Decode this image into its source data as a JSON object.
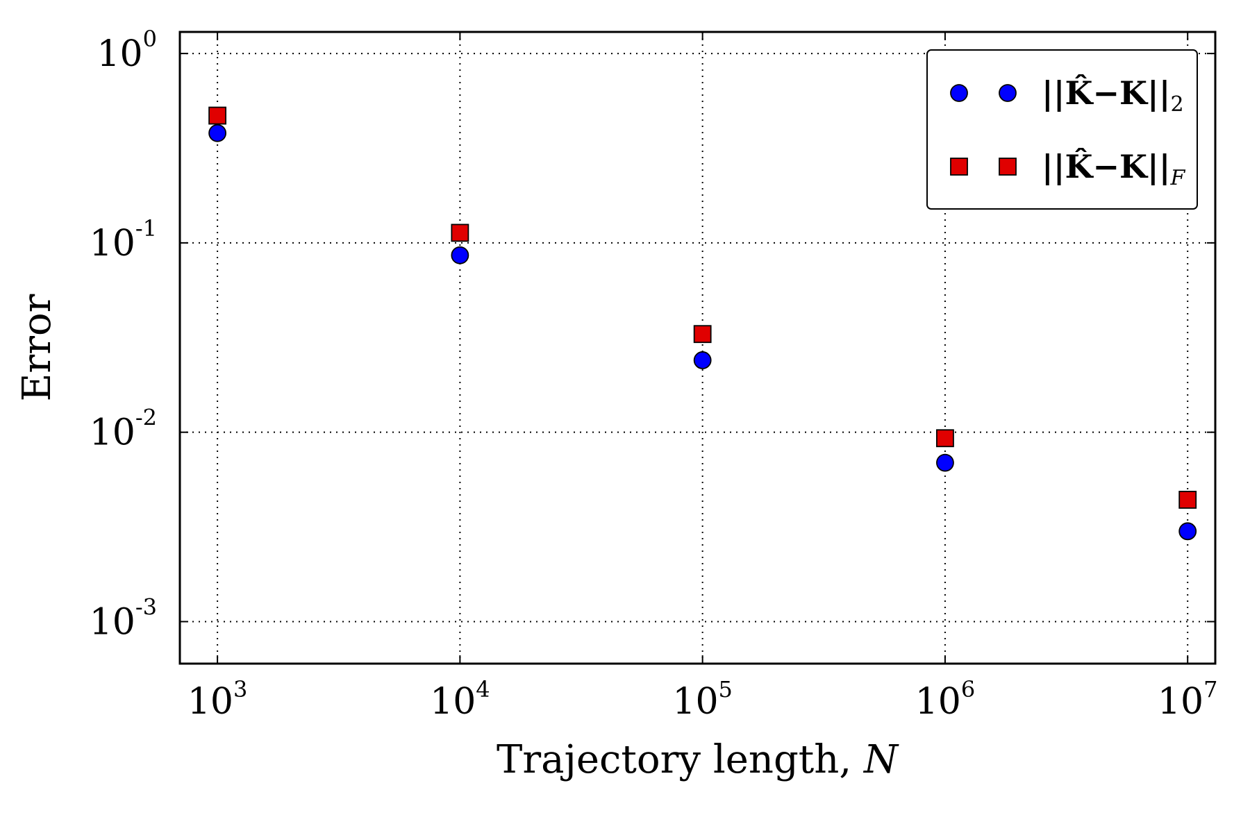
{
  "chart_data": {
    "type": "scatter",
    "xscale": "log",
    "yscale": "log",
    "xlabel": "Trajectory length, N",
    "xlabel_text": "Trajectory length, ",
    "xlabel_var": "N",
    "ylabel": "Error",
    "xlim": [
      700,
      13000000
    ],
    "ylim": [
      0.0006,
      1.3
    ],
    "grid": true,
    "legend_position": "top-right",
    "x_ticks": [
      {
        "value": 1000,
        "base": "10",
        "exp": "3"
      },
      {
        "value": 10000,
        "base": "10",
        "exp": "4"
      },
      {
        "value": 100000,
        "base": "10",
        "exp": "5"
      },
      {
        "value": 1000000,
        "base": "10",
        "exp": "6"
      },
      {
        "value": 10000000,
        "base": "10",
        "exp": "7"
      }
    ],
    "y_ticks": [
      {
        "value": 1,
        "base": "10",
        "exp": "0"
      },
      {
        "value": 0.1,
        "base": "10",
        "exp": "-1"
      },
      {
        "value": 0.01,
        "base": "10",
        "exp": "-2"
      },
      {
        "value": 0.001,
        "base": "10",
        "exp": "-3"
      }
    ],
    "x": [
      1000,
      10000,
      100000,
      1000000,
      10000000
    ],
    "series": [
      {
        "name": "||K̂−K||₂",
        "legend_main": "||K̂−K||",
        "legend_sub": "2",
        "marker": "circle",
        "color": "#0000ff",
        "values": [
          0.38,
          0.086,
          0.024,
          0.0069,
          0.003
        ]
      },
      {
        "name": "||K̂−K||F",
        "legend_main": "||K̂−K||",
        "legend_sub": "F",
        "marker": "square",
        "color": "#e00000",
        "values": [
          0.47,
          0.113,
          0.033,
          0.0093,
          0.0044
        ]
      }
    ]
  }
}
